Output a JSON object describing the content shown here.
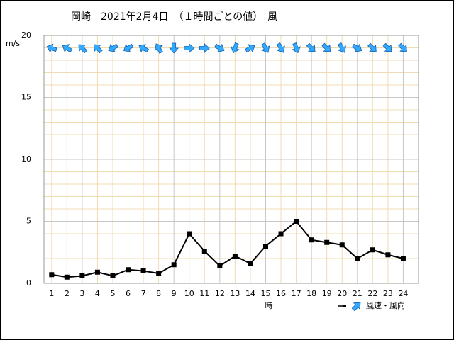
{
  "chart_data": {
    "type": "line",
    "title": "岡崎　2021年2月4日　（１時間ごとの値）　風",
    "y_label": "m/s",
    "x_label": "時",
    "x": [
      1,
      2,
      3,
      4,
      5,
      6,
      7,
      8,
      9,
      10,
      11,
      12,
      13,
      14,
      15,
      16,
      17,
      18,
      19,
      20,
      21,
      22,
      23,
      24
    ],
    "xlim": [
      0.5,
      25
    ],
    "xticks": [
      1,
      2,
      3,
      4,
      5,
      6,
      7,
      8,
      9,
      10,
      11,
      12,
      13,
      14,
      15,
      16,
      17,
      18,
      19,
      20,
      21,
      22,
      23,
      24
    ],
    "ylim": [
      0,
      20
    ],
    "yticks": [
      0,
      5,
      10,
      15,
      20
    ],
    "grid": true,
    "legend_position": "bottom-right",
    "series": [
      {
        "name": "風速・風向",
        "color": "#000000",
        "values": [
          0.7,
          0.5,
          0.6,
          0.9,
          0.6,
          1.1,
          1.0,
          0.8,
          1.5,
          4.0,
          2.6,
          1.4,
          2.2,
          1.6,
          3.0,
          4.0,
          5.0,
          3.5,
          3.3,
          3.1,
          2.0,
          2.7,
          2.3,
          2.0
        ],
        "directions": [
          290,
          300,
          315,
          315,
          240,
          240,
          300,
          330,
          180,
          90,
          90,
          120,
          200,
          60,
          150,
          150,
          160,
          135,
          135,
          150,
          120,
          135,
          135,
          135
        ],
        "arrow_color": "#33aaff"
      }
    ]
  }
}
